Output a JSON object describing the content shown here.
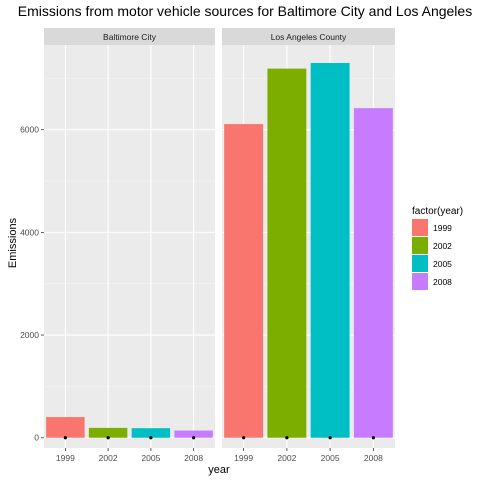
{
  "chart_data": {
    "type": "bar",
    "title": "Emissions from motor vehicle sources for Baltimore City and Los Angeles",
    "xlabel": "year",
    "ylabel": "Emissions",
    "categories": [
      "1999",
      "2002",
      "2005",
      "2008"
    ],
    "facets": [
      {
        "name": "Baltimore City",
        "values": [
          403,
          192,
          186,
          140
        ]
      },
      {
        "name": "Los Angeles County",
        "values": [
          6110,
          7190,
          7300,
          6420
        ]
      }
    ],
    "ylim": [
      -200,
      7650
    ],
    "yticks": [
      0,
      2000,
      4000,
      6000
    ],
    "ytick_labels": [
      "0",
      "2000",
      "4000",
      "6000"
    ],
    "legend": {
      "title": "factor(year)",
      "labels": [
        "1999",
        "2002",
        "2005",
        "2008"
      ],
      "placement": "right"
    },
    "colors": [
      "#F8766D",
      "#7CAE00",
      "#00BFC4",
      "#C77CFF"
    ],
    "panel_background": "#EBEBEB",
    "strip_background": "#D9D9D9",
    "grid": true
  }
}
